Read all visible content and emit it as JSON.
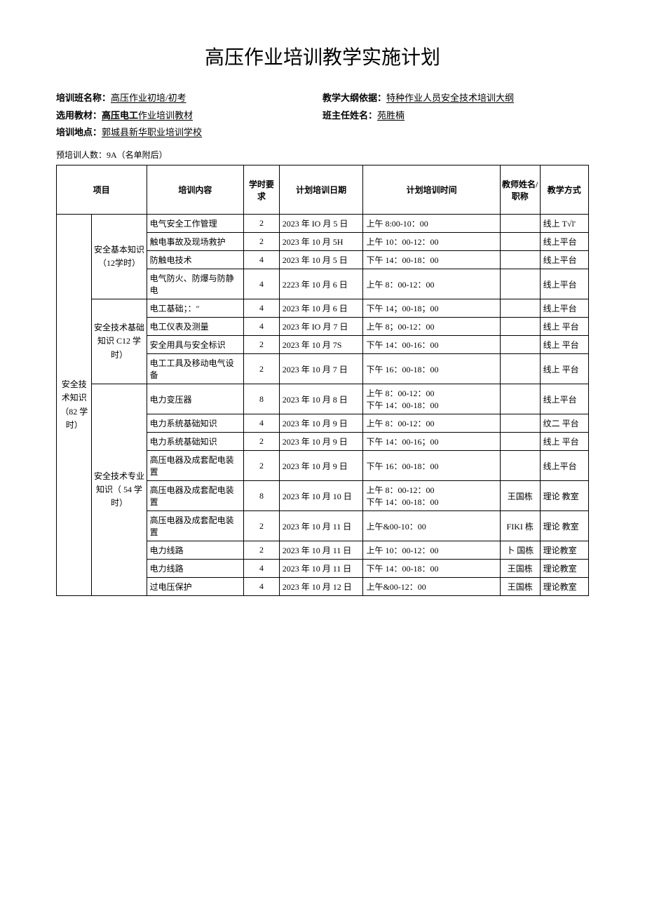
{
  "title": "高压作业培训教学实施计划",
  "meta": {
    "class_label": "培训班名称：",
    "class_val": "高压作业初培/初考",
    "outline_label": "教学大纲依据：",
    "outline_val": "特种作业人员安全技术培训大纲",
    "textbook_label": "选用教材：",
    "textbook_bold": "高压电工",
    "textbook_rest": "作业培训教材",
    "headteacher_label": "班主任姓名：",
    "headteacher_val": "苑胜楠",
    "location_label": "培训地点：",
    "location_val": "郭城县新华职业培训学校",
    "pre_count": "预培训人数：9A（名单附后）"
  },
  "headers": {
    "proj": "项目",
    "content": "培训内容",
    "hours": "学时要求",
    "date": "计划培训日期",
    "time": "计划培训时间",
    "teacher": "教师姓名/职称",
    "mode": "教学方式"
  },
  "group_main": "安全技术知识（82 学时）",
  "subgroups": {
    "g1": "安全基本知识（12学时）",
    "g2": "安全技术基础知识 C12 学时）",
    "g3": "安全技术专业知识（ 54 学时）"
  },
  "rows": [
    {
      "content": "电气安全工作管理",
      "hrs": "2",
      "date": "2023 年 IO 月 5 日",
      "time": "上午 8:00-10：00",
      "teacher": "",
      "mode": "线上 T√l'"
    },
    {
      "content": "触电事故及现场救护",
      "hrs": "2",
      "date": "2023 年 10 月 5H",
      "time": "上午 10：00-12：00",
      "teacher": "",
      "mode": "线上平台"
    },
    {
      "content": "防触电技术",
      "hrs": "4",
      "date": "2023 年 10 月 5 日",
      "time": "下午 14：00-18：00",
      "teacher": "",
      "mode": "线上平台"
    },
    {
      "content": "电气防火、防爆与防静电",
      "hrs": "4",
      "date": "2223 年 10 月 6 日",
      "time": "上午 8：00-12：00",
      "teacher": "",
      "mode": "线上平台"
    },
    {
      "content": "电工基础；：″",
      "hrs": "4",
      "date": "2023 年 10 月 6 日",
      "time": "下午 14；00-18；00",
      "teacher": "",
      "mode": "线上平台"
    },
    {
      "content": "电工仪表及测量",
      "hrs": "4",
      "date": "2023 年 IO 月 7 日",
      "time": "上午 8；00-12：00",
      "teacher": "",
      "mode": "线上 平台"
    },
    {
      "content": "安全用具与安全标识",
      "hrs": "2",
      "date": "2023 年 10 月 7S",
      "time": "下午 14：00-16：00",
      "teacher": "",
      "mode": "线上 平台"
    },
    {
      "content": "电工工具及移动电气设备",
      "hrs": "2",
      "date": "2023 年 10 月 7 日",
      "time": "下午 16：00-18：00",
      "teacher": "",
      "mode": "线上 平台"
    },
    {
      "content": "电力变压器",
      "hrs": "8",
      "date": "2023 年 10 月 8 日",
      "time": "上午 8：00-12：00\n下午 14：00-18：00",
      "teacher": "",
      "mode": "线上平台"
    },
    {
      "content": "电力系统基础知识",
      "hrs": "4",
      "date": "2023 年 10 月 9 日",
      "time": "上午 8：00-12：00",
      "teacher": "",
      "mode": "纹二 平台"
    },
    {
      "content": "电力系统基础知识",
      "hrs": "2",
      "date": "2023 年 10 月 9 日",
      "time": "下午 14：00-16；00",
      "teacher": "",
      "mode": "线上 平台"
    },
    {
      "content": "高压电器及成套配电装置",
      "hrs": "2",
      "date": "2023 年 10 月 9 日",
      "time": "下午 16：00-18：00",
      "teacher": "",
      "mode": "线上平台"
    },
    {
      "content": "高压电器及成套配电装置",
      "hrs": "8",
      "date": "2023 年 10 月 10 日",
      "time": "上午 8：00-12：00\n下午 14：00-18：00",
      "teacher": "王国栋",
      "mode": "理论 教室"
    },
    {
      "content": "高压电器及成套配电装置",
      "hrs": "2",
      "date": "2023 年 10 月 11 日",
      "time": "上午&00-10：00",
      "teacher": "FIKI 栋",
      "mode": "理论 教室"
    },
    {
      "content": "电力线路",
      "hrs": "2",
      "date": "2023 年 10 月 11 日",
      "time": "上午 10：00-12：00",
      "teacher": "卜 国栋",
      "mode": "理论教室"
    },
    {
      "content": "电力线路",
      "hrs": "4",
      "date": "2023 年 10 月 11 日",
      "time": "下午 14：00-18：00",
      "teacher": "王国栋",
      "mode": "理论教室"
    },
    {
      "content": "过电压保护",
      "hrs": "4",
      "date": "2023 年 10 月 12 日",
      "time": "上午&00-12：00",
      "teacher": "王国栋",
      "mode": "理论教室"
    }
  ]
}
